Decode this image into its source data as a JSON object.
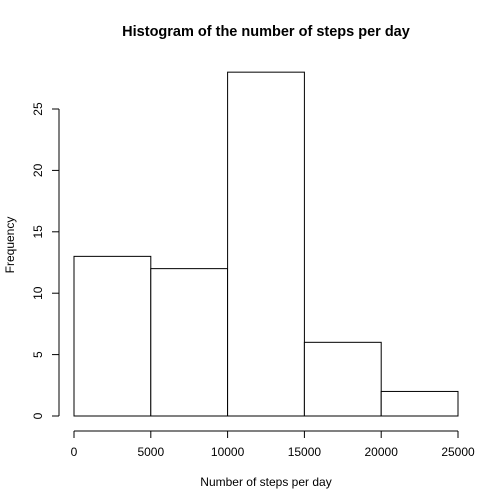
{
  "chart_data": {
    "type": "bar",
    "title": "Histogram of the number of steps per day",
    "xlabel": "Number of steps per day",
    "ylabel": "Frequency",
    "bins": [
      {
        "start": 0,
        "end": 5000,
        "count": 13
      },
      {
        "start": 5000,
        "end": 10000,
        "count": 12
      },
      {
        "start": 10000,
        "end": 15000,
        "count": 28
      },
      {
        "start": 15000,
        "end": 20000,
        "count": 6
      },
      {
        "start": 20000,
        "end": 25000,
        "count": 2
      }
    ],
    "xticks": [
      0,
      5000,
      10000,
      15000,
      20000,
      25000
    ],
    "xtick_labels": [
      "0",
      "5000",
      "10000",
      "15000",
      "20000",
      "25000"
    ],
    "yticks": [
      0,
      5,
      10,
      15,
      20,
      25
    ],
    "ytick_labels": [
      "0",
      "5",
      "10",
      "15",
      "20",
      "25"
    ],
    "xlim": [
      0,
      25000
    ],
    "ylim": [
      0,
      28
    ],
    "grid": false,
    "legend": "none"
  }
}
